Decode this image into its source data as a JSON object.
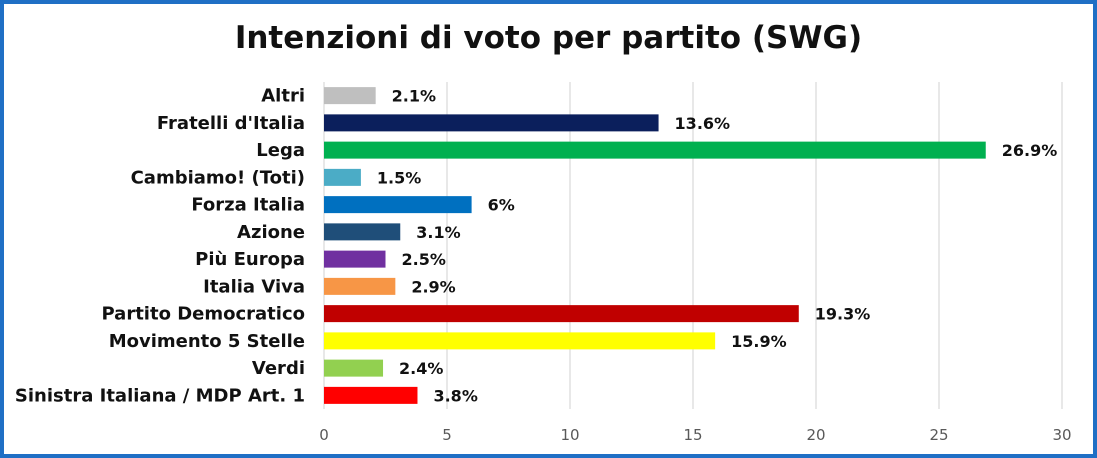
{
  "chart_data": {
    "type": "bar",
    "orientation": "horizontal",
    "title": "Intenzioni di voto per partito (SWG)",
    "xlabel": "",
    "ylabel": "",
    "xlim": [
      0,
      30
    ],
    "ticks": [
      "0",
      "5",
      "10",
      "15",
      "20",
      "25",
      "30"
    ],
    "grid": true,
    "legend": "none",
    "categories": [
      "Altri",
      "Fratelli d'Italia",
      "Lega",
      "Cambiamo! (Toti)",
      "Forza Italia",
      "Azione",
      "Più Europa",
      "Italia Viva",
      "Partito Democratico",
      "Movimento 5 Stelle",
      "Verdi",
      "Sinistra Italiana / MDP Art. 1"
    ],
    "values": [
      2.1,
      13.6,
      26.9,
      1.5,
      6,
      3.1,
      2.5,
      2.9,
      19.3,
      15.9,
      2.4,
      3.8
    ],
    "labels": [
      "2.1%",
      "13.6%",
      "26.9%",
      "1.5%",
      "6%",
      "3.1%",
      "2.5%",
      "2.9%",
      "19.3%",
      "15.9%",
      "2.4%",
      "3.8%"
    ],
    "colors": [
      "#bfbfbf",
      "#0b1f5c",
      "#00b050",
      "#4bacc6",
      "#0070c0",
      "#1f4e79",
      "#7030a0",
      "#f79646",
      "#c00000",
      "#ffff00",
      "#92d050",
      "#ff0000"
    ]
  }
}
